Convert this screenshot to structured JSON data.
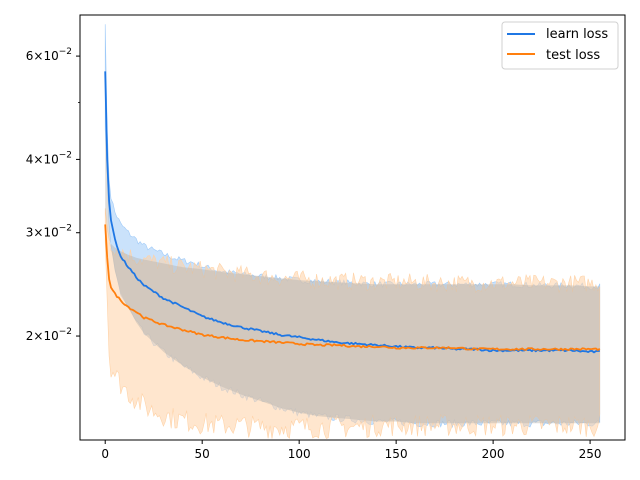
{
  "chart_data": {
    "type": "line",
    "title": "",
    "xlabel": "",
    "ylabel": "",
    "xlim": [
      -13,
      268
    ],
    "ylim": [
      0.0133,
      0.0705
    ],
    "yscale": "log",
    "grid": false,
    "legend_position": "top-right",
    "x_ticks": [
      0,
      50,
      100,
      150,
      200,
      250
    ],
    "y_ticks": [
      {
        "value": 0.02,
        "mantissa": "2",
        "label": "2×10⁻²"
      },
      {
        "value": 0.03,
        "mantissa": "3",
        "label": "3×10⁻²"
      },
      {
        "value": 0.04,
        "mantissa": "4",
        "label": "4×10⁻²"
      },
      {
        "value": 0.06,
        "mantissa": "6",
        "label": "6×10⁻²"
      }
    ],
    "y_minor_ticks": [
      0.05
    ],
    "series": [
      {
        "name": "learn loss",
        "color": "#1f77e4",
        "band_color": "#9fcaf8",
        "mean": [
          [
            0,
            0.0565
          ],
          [
            1,
            0.04
          ],
          [
            2,
            0.034
          ],
          [
            3,
            0.0315
          ],
          [
            5,
            0.0292
          ],
          [
            8,
            0.0273
          ],
          [
            12,
            0.0262
          ],
          [
            16,
            0.0252
          ],
          [
            20,
            0.0244
          ],
          [
            25,
            0.0238
          ],
          [
            30,
            0.0232
          ],
          [
            35,
            0.0228
          ],
          [
            40,
            0.0224
          ],
          [
            45,
            0.022
          ],
          [
            50,
            0.0216
          ],
          [
            60,
            0.0211
          ],
          [
            70,
            0.0207
          ],
          [
            80,
            0.0204
          ],
          [
            90,
            0.0201
          ],
          [
            100,
            0.0199
          ],
          [
            110,
            0.0197
          ],
          [
            120,
            0.0195
          ],
          [
            130,
            0.0194
          ],
          [
            140,
            0.0193
          ],
          [
            150,
            0.0192
          ],
          [
            160,
            0.0191
          ],
          [
            170,
            0.0191
          ],
          [
            180,
            0.019
          ],
          [
            190,
            0.019
          ],
          [
            200,
            0.0189
          ],
          [
            210,
            0.0189
          ],
          [
            220,
            0.0189
          ],
          [
            230,
            0.0189
          ],
          [
            240,
            0.0189
          ],
          [
            250,
            0.0188
          ],
          [
            255,
            0.0188
          ]
        ],
        "upper": [
          [
            0,
            0.068
          ],
          [
            1,
            0.045
          ],
          [
            2,
            0.037
          ],
          [
            3,
            0.0345
          ],
          [
            5,
            0.0325
          ],
          [
            8,
            0.031
          ],
          [
            12,
            0.03
          ],
          [
            16,
            0.0292
          ],
          [
            20,
            0.0285
          ],
          [
            25,
            0.028
          ],
          [
            30,
            0.0276
          ],
          [
            35,
            0.0272
          ],
          [
            40,
            0.0269
          ],
          [
            45,
            0.0267
          ],
          [
            50,
            0.0263
          ],
          [
            60,
            0.0258
          ],
          [
            70,
            0.0255
          ],
          [
            80,
            0.0253
          ],
          [
            90,
            0.0251
          ],
          [
            100,
            0.0249
          ],
          [
            110,
            0.0248
          ],
          [
            120,
            0.0247
          ],
          [
            130,
            0.0246
          ],
          [
            140,
            0.0245
          ],
          [
            150,
            0.0245
          ],
          [
            160,
            0.0245
          ],
          [
            170,
            0.0245
          ],
          [
            180,
            0.0245
          ],
          [
            190,
            0.0245
          ],
          [
            200,
            0.0245
          ],
          [
            210,
            0.0245
          ],
          [
            220,
            0.0244
          ],
          [
            230,
            0.0244
          ],
          [
            240,
            0.0244
          ],
          [
            250,
            0.0243
          ],
          [
            255,
            0.0243
          ]
        ],
        "lower": [
          [
            0,
            0.045
          ],
          [
            1,
            0.038
          ],
          [
            2,
            0.031
          ],
          [
            3,
            0.0282
          ],
          [
            5,
            0.0258
          ],
          [
            8,
            0.0236
          ],
          [
            12,
            0.0223
          ],
          [
            16,
            0.0211
          ],
          [
            20,
            0.0202
          ],
          [
            25,
            0.0195
          ],
          [
            30,
            0.0188
          ],
          [
            35,
            0.0183
          ],
          [
            40,
            0.0178
          ],
          [
            45,
            0.0174
          ],
          [
            50,
            0.017
          ],
          [
            60,
            0.0164
          ],
          [
            70,
            0.0159
          ],
          [
            80,
            0.0155
          ],
          [
            90,
            0.0151
          ],
          [
            100,
            0.0148
          ],
          [
            110,
            0.0146
          ],
          [
            120,
            0.0145
          ],
          [
            130,
            0.0144
          ],
          [
            140,
            0.0143
          ],
          [
            150,
            0.0143
          ],
          [
            160,
            0.0142
          ],
          [
            170,
            0.0142
          ],
          [
            180,
            0.0142
          ],
          [
            190,
            0.0142
          ],
          [
            200,
            0.0142
          ],
          [
            210,
            0.0142
          ],
          [
            220,
            0.0142
          ],
          [
            230,
            0.0142
          ],
          [
            240,
            0.0142
          ],
          [
            250,
            0.0142
          ],
          [
            255,
            0.0142
          ]
        ]
      },
      {
        "name": "test loss",
        "color": "#ff7f0e",
        "band_color": "#ffd2a6",
        "mean": [
          [
            0,
            0.031
          ],
          [
            1,
            0.0272
          ],
          [
            2,
            0.025
          ],
          [
            3,
            0.0242
          ],
          [
            5,
            0.0236
          ],
          [
            8,
            0.023
          ],
          [
            12,
            0.0224
          ],
          [
            16,
            0.022
          ],
          [
            20,
            0.0215
          ],
          [
            25,
            0.0212
          ],
          [
            30,
            0.0209
          ],
          [
            35,
            0.0207
          ],
          [
            40,
            0.0205
          ],
          [
            45,
            0.0203
          ],
          [
            50,
            0.0201
          ],
          [
            60,
            0.0199
          ],
          [
            70,
            0.0197
          ],
          [
            80,
            0.0196
          ],
          [
            90,
            0.0195
          ],
          [
            100,
            0.0194
          ],
          [
            110,
            0.0193
          ],
          [
            120,
            0.0193
          ],
          [
            130,
            0.0192
          ],
          [
            140,
            0.0192
          ],
          [
            150,
            0.0191
          ],
          [
            160,
            0.0191
          ],
          [
            170,
            0.0191
          ],
          [
            180,
            0.0191
          ],
          [
            190,
            0.019
          ],
          [
            200,
            0.019
          ],
          [
            210,
            0.019
          ],
          [
            220,
            0.019
          ],
          [
            230,
            0.019
          ],
          [
            240,
            0.019
          ],
          [
            250,
            0.019
          ],
          [
            255,
            0.019
          ]
        ],
        "upper": [
          [
            0,
            0.033
          ],
          [
            1,
            0.0305
          ],
          [
            2,
            0.0292
          ],
          [
            3,
            0.0287
          ],
          [
            5,
            0.0283
          ],
          [
            8,
            0.0279
          ],
          [
            12,
            0.0275
          ],
          [
            16,
            0.0272
          ],
          [
            20,
            0.027
          ],
          [
            25,
            0.0268
          ],
          [
            30,
            0.0266
          ],
          [
            35,
            0.0264
          ],
          [
            40,
            0.0262
          ],
          [
            45,
            0.0261
          ],
          [
            50,
            0.026
          ],
          [
            60,
            0.0257
          ],
          [
            70,
            0.0255
          ],
          [
            80,
            0.0253
          ],
          [
            90,
            0.0251
          ],
          [
            100,
            0.025
          ],
          [
            110,
            0.0249
          ],
          [
            120,
            0.0248
          ],
          [
            130,
            0.0248
          ],
          [
            140,
            0.0247
          ],
          [
            150,
            0.0247
          ],
          [
            160,
            0.0247
          ],
          [
            170,
            0.0246
          ],
          [
            180,
            0.0246
          ],
          [
            190,
            0.0246
          ],
          [
            200,
            0.0246
          ],
          [
            210,
            0.0246
          ],
          [
            220,
            0.0246
          ],
          [
            230,
            0.0246
          ],
          [
            240,
            0.0246
          ],
          [
            250,
            0.0246
          ],
          [
            255,
            0.0246
          ]
        ],
        "lower": [
          [
            0,
            0.029
          ],
          [
            1,
            0.023
          ],
          [
            2,
            0.0185
          ],
          [
            3,
            0.0178
          ],
          [
            5,
            0.0172
          ],
          [
            8,
            0.0166
          ],
          [
            12,
            0.016
          ],
          [
            16,
            0.0156
          ],
          [
            20,
            0.0152
          ],
          [
            25,
            0.0149
          ],
          [
            30,
            0.0147
          ],
          [
            35,
            0.0145
          ],
          [
            40,
            0.0144
          ],
          [
            45,
            0.0143
          ],
          [
            50,
            0.0142
          ],
          [
            60,
            0.0141
          ],
          [
            70,
            0.0141
          ],
          [
            80,
            0.014
          ],
          [
            90,
            0.014
          ],
          [
            100,
            0.014
          ],
          [
            110,
            0.014
          ],
          [
            120,
            0.014
          ],
          [
            130,
            0.014
          ],
          [
            140,
            0.0141
          ],
          [
            150,
            0.0141
          ],
          [
            160,
            0.0141
          ],
          [
            170,
            0.0141
          ],
          [
            180,
            0.0141
          ],
          [
            190,
            0.0141
          ],
          [
            200,
            0.0141
          ],
          [
            210,
            0.0141
          ],
          [
            220,
            0.0141
          ],
          [
            230,
            0.0141
          ],
          [
            240,
            0.0141
          ],
          [
            250,
            0.0141
          ],
          [
            255,
            0.0141
          ]
        ]
      }
    ]
  }
}
